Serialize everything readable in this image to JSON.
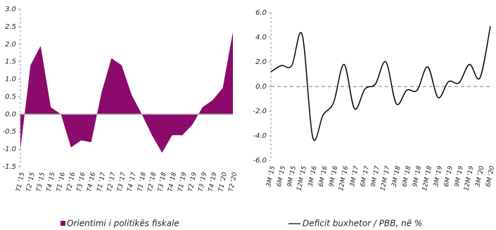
{
  "chart_data": [
    {
      "type": "area",
      "categories": [
        "T1 '15",
        "T2 '15",
        "T3 '15",
        "T4 '15",
        "T1 '16",
        "T2 '16",
        "T3 '16",
        "T4 '16",
        "T1 '17",
        "T2 '17",
        "T3 '17",
        "T4 '17",
        "T1 '18",
        "T2 '18",
        "T3 '18",
        "T4 '18",
        "T1 '19",
        "T2 '19",
        "T3 '19",
        "T4 '19",
        "T1 '20",
        "T2 '20"
      ],
      "series": [
        {
          "name": "Orientimi i politikës fiskale",
          "color": "#8b0a6b",
          "values": [
            -1.0,
            1.4,
            1.95,
            0.2,
            0.0,
            -0.95,
            -0.75,
            -0.8,
            0.6,
            1.6,
            1.4,
            0.55,
            0.0,
            -0.6,
            -1.1,
            -0.6,
            -0.6,
            -0.3,
            0.2,
            0.4,
            0.75,
            2.35
          ]
        }
      ],
      "ylim": [
        -1.5,
        3.0
      ],
      "yticks": [
        {
          "value": 3.0,
          "label": "3.0"
        },
        2.5,
        {
          "value": 2.0,
          "label": "2.0"
        },
        1.5,
        {
          "value": 1.0,
          "label": "1.0"
        },
        0.5,
        {
          "value": 0.0,
          "label": "0.0"
        },
        -0.5,
        {
          "value": -1.0,
          "label": "-1.0"
        },
        -1.5
      ]
    },
    {
      "type": "line",
      "categories": [
        "3M '15",
        "6M '15",
        "9M '15",
        "12M '15",
        "3M '16",
        "6M '16",
        "9M '16",
        "12M '16",
        "3M '17",
        "6M '17",
        "9M '17",
        "12M '17",
        "3M '18",
        "6M '18",
        "9M '18",
        "12M '18",
        "3M '19",
        "6M '19",
        "9M '19",
        "12M '19",
        "3M '20",
        "6M '20"
      ],
      "series": [
        {
          "name": "Deficit buxhetor / PBB, në %",
          "color": "#000000",
          "values": [
            1.2,
            1.7,
            1.7,
            4.2,
            -4.1,
            -2.3,
            -1.3,
            1.8,
            -1.8,
            -0.2,
            0.2,
            2.0,
            -1.4,
            -0.3,
            -0.3,
            1.6,
            -0.9,
            0.4,
            0.3,
            1.8,
            0.7,
            4.9
          ]
        }
      ],
      "ylim": [
        -6.0,
        6.0
      ],
      "yticks": [
        {
          "value": 6.0,
          "label": "6.0"
        },
        {
          "value": 4.0,
          "label": "4.0"
        },
        {
          "value": 2.0,
          "label": "2.0"
        },
        {
          "value": 0.0,
          "label": "0.0"
        },
        {
          "value": -2.0,
          "label": "-2.0"
        },
        {
          "value": -4.0,
          "label": "-4.0"
        },
        {
          "value": -6.0,
          "label": "-6.0"
        }
      ]
    }
  ]
}
